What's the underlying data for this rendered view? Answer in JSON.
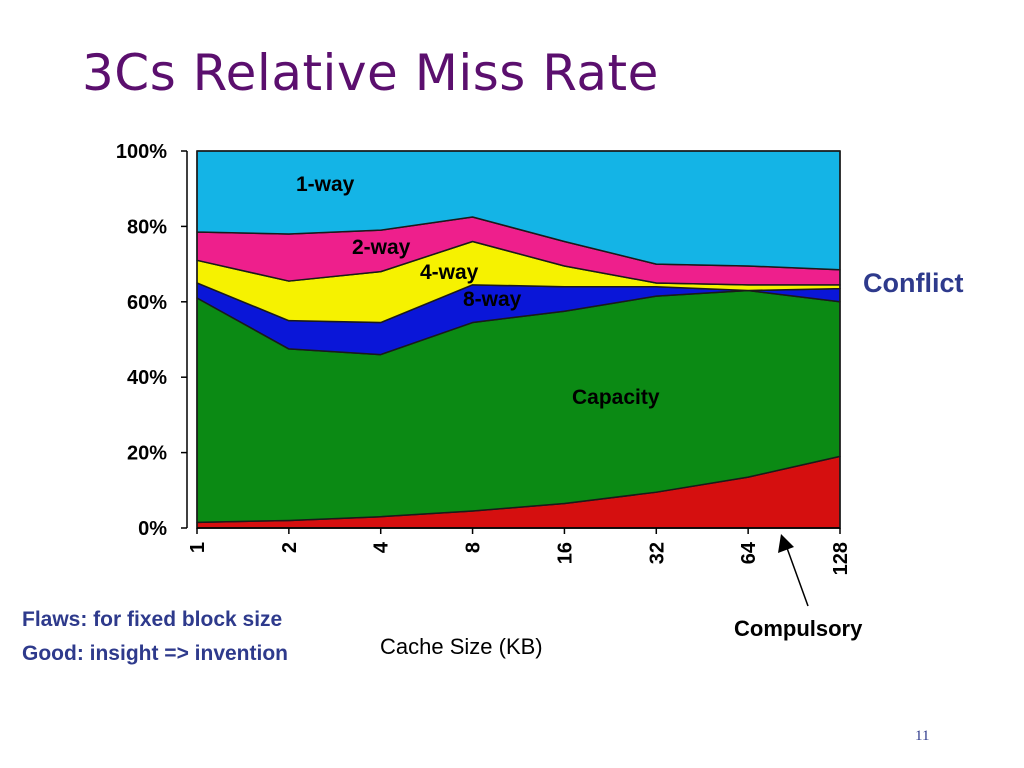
{
  "slide": {
    "title": "3Cs Relative Miss Rate",
    "page_number": "11",
    "notes": [
      "Flaws: for fixed block size",
      "Good: insight => invention"
    ]
  },
  "chart_data": {
    "type": "area",
    "stacked": true,
    "x": [
      "1",
      "2",
      "4",
      "8",
      "16",
      "32",
      "64",
      "128"
    ],
    "xlabel": "Cache Size (KB)",
    "ylabel": "",
    "ylim": [
      0,
      100
    ],
    "y_ticks": [
      "0%",
      "20%",
      "40%",
      "60%",
      "80%",
      "100%"
    ],
    "series": [
      {
        "name": "Compulsory",
        "color": "#d50f0f",
        "values": [
          1.5,
          2,
          3,
          4.5,
          6.5,
          9.5,
          13.5,
          19
        ]
      },
      {
        "name": "Capacity",
        "color": "#0b8a14",
        "values": [
          59.5,
          45.5,
          43,
          50,
          51,
          52,
          49.5,
          41
        ]
      },
      {
        "name": "8-way",
        "color": "#0a16d8",
        "values": [
          4,
          7.5,
          8.5,
          10,
          6.5,
          2.5,
          0,
          3.5
        ]
      },
      {
        "name": "4-way",
        "color": "#f6f200",
        "values": [
          6,
          10.5,
          13.5,
          11.5,
          5.5,
          1,
          1.5,
          1
        ]
      },
      {
        "name": "2-way",
        "color": "#ee1f8c",
        "values": [
          7.5,
          12.5,
          11,
          6.5,
          6.5,
          5,
          5,
          4
        ]
      },
      {
        "name": "1-way",
        "color": "#14b4e6",
        "values": [
          21.5,
          22,
          21,
          17.5,
          24,
          30,
          30.5,
          31.5
        ]
      }
    ],
    "annotations": {
      "conflict": "Conflict",
      "compulsory": "Compulsory",
      "capacity": "Capacity",
      "one_way": "1-way",
      "two_way": "2-way",
      "four_way": "4-way",
      "eight_way": "8-way"
    },
    "legend": "none"
  }
}
